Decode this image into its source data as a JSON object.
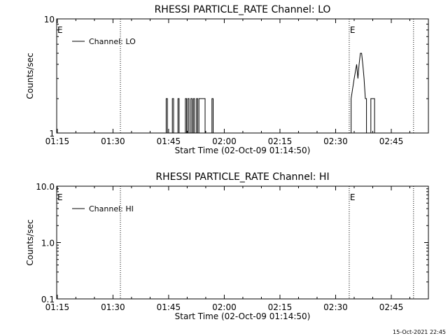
{
  "chart_data": [
    {
      "type": "line",
      "title": "RHESSI PARTICLE_RATE Channel: LO",
      "xlabel": "Start Time (02-Oct-09 01:14:50)",
      "ylabel": "Counts/sec",
      "y_scale": "log",
      "ylim": [
        1,
        10
      ],
      "y_tick_labels": [
        "1",
        "10"
      ],
      "xlim": [
        "01:14:50",
        "02:55:00"
      ],
      "x_tick_labels": [
        "01:15",
        "01:30",
        "01:45",
        "02:00",
        "02:15",
        "02:30",
        "02:45"
      ],
      "legend": {
        "position": "top-left",
        "entries": [
          "Channel: LO"
        ]
      },
      "markers": [
        {
          "time": "01:14:50",
          "label": "E"
        },
        {
          "time": "01:32:00",
          "label": ""
        },
        {
          "time": "02:33:40",
          "label": "E"
        },
        {
          "time": "02:51:00",
          "label": ""
        }
      ],
      "series": [
        {
          "name": "Channel: LO",
          "points": [
            [
              "01:44:20",
              1
            ],
            [
              "01:44:20",
              2
            ],
            [
              "01:44:40",
              2
            ],
            [
              "01:44:40",
              1
            ],
            [
              "01:46:00",
              1
            ],
            [
              "01:46:00",
              2
            ],
            [
              "01:46:20",
              2
            ],
            [
              "01:46:20",
              1
            ],
            [
              "01:47:30",
              1
            ],
            [
              "01:47:30",
              2
            ],
            [
              "01:47:50",
              2
            ],
            [
              "01:47:50",
              1
            ],
            [
              "01:49:30",
              1
            ],
            [
              "01:49:30",
              2
            ],
            [
              "01:49:50",
              2
            ],
            [
              "01:49:50",
              1
            ],
            [
              "01:50:10",
              1
            ],
            [
              "01:50:10",
              2
            ],
            [
              "01:50:30",
              2
            ],
            [
              "01:50:30",
              1
            ],
            [
              "01:51:00",
              1
            ],
            [
              "01:51:00",
              2
            ],
            [
              "01:51:20",
              2
            ],
            [
              "01:51:20",
              1
            ],
            [
              "01:51:40",
              1
            ],
            [
              "01:51:40",
              2
            ],
            [
              "01:52:00",
              2
            ],
            [
              "01:52:00",
              1
            ],
            [
              "01:52:30",
              1
            ],
            [
              "01:52:30",
              2
            ],
            [
              "01:52:50",
              2
            ],
            [
              "01:52:50",
              1
            ],
            [
              "01:53:10",
              1
            ],
            [
              "01:53:10",
              2
            ],
            [
              "01:54:50",
              2
            ],
            [
              "01:54:50",
              1
            ],
            [
              "01:56:40",
              1
            ],
            [
              "01:56:40",
              2
            ],
            [
              "01:57:00",
              2
            ],
            [
              "01:57:00",
              1
            ],
            [
              "02:34:10",
              1
            ],
            [
              "02:34:10",
              2
            ],
            [
              "02:35:00",
              3
            ],
            [
              "02:35:40",
              4
            ],
            [
              "02:36:00",
              3
            ],
            [
              "02:36:20",
              4
            ],
            [
              "02:36:40",
              5
            ],
            [
              "02:37:00",
              5
            ],
            [
              "02:37:20",
              4
            ],
            [
              "02:37:40",
              3
            ],
            [
              "02:38:00",
              2
            ],
            [
              "02:38:20",
              2
            ],
            [
              "02:38:20",
              1
            ],
            [
              "02:39:30",
              1
            ],
            [
              "02:39:30",
              2
            ],
            [
              "02:40:30",
              2
            ],
            [
              "02:40:30",
              1
            ]
          ]
        }
      ]
    },
    {
      "type": "line",
      "title": "RHESSI PARTICLE_RATE Channel: HI",
      "xlabel": "Start Time (02-Oct-09 01:14:50)",
      "ylabel": "Counts/sec",
      "y_scale": "log",
      "ylim": [
        0.1,
        10
      ],
      "y_tick_labels": [
        "0.1",
        "1.0",
        "10.0"
      ],
      "xlim": [
        "01:14:50",
        "02:55:00"
      ],
      "x_tick_labels": [
        "01:15",
        "01:30",
        "01:45",
        "02:00",
        "02:15",
        "02:30",
        "02:45"
      ],
      "legend": {
        "position": "top-left",
        "entries": [
          "Channel: HI"
        ]
      },
      "markers": [
        {
          "time": "01:14:50",
          "label": "E"
        },
        {
          "time": "01:32:00",
          "label": ""
        },
        {
          "time": "02:33:40",
          "label": "E"
        },
        {
          "time": "02:51:00",
          "label": ""
        }
      ],
      "series": [
        {
          "name": "Channel: HI",
          "points": []
        }
      ]
    }
  ],
  "footer": {
    "timestamp": "15-Oct-2021 22:45"
  }
}
